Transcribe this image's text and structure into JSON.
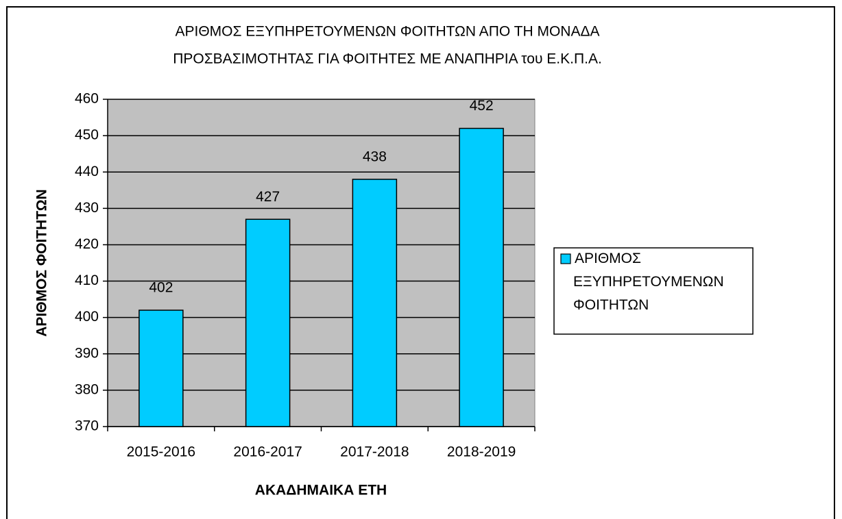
{
  "chart_data": {
    "type": "bar",
    "title": [
      "ΑΡΙΘΜΟΣ ΕΞΥΠΗΡΕΤΟΥΜΕΝΩΝ ΦΟΙΤΗΤΩΝ ΑΠΟ ΤΗ ΜΟΝΑΔΑ",
      "ΠΡΟΣΒΑΣΙΜΟΤΗΤΑΣ ΓΙΑ ΦΟΙΤΗΤΕΣ ΜΕ ΑΝΑΠΗΡΙΑ του Ε.Κ.Π.Α."
    ],
    "x_label": "ΑΚΑΔΗΜΑΙΚΑ ΕΤΗ",
    "y_label": "ΑΡΙΘΜΟΣ ΦΟΙΤΗΤΩΝ",
    "categories": [
      "2015-2016",
      "2016-2017",
      "2017-2018",
      "2018-2019"
    ],
    "series": [
      {
        "name": "ΑΡΙΘΜΟΣ ΕΞΥΠΗΡΕΤΟΥΜΕΝΩΝ ΦΟΙΤΗΤΩΝ",
        "color": "#00ccff",
        "values": [
          402,
          427,
          438,
          452
        ]
      }
    ],
    "ylim": [
      370,
      460
    ],
    "yticks": [
      370,
      380,
      390,
      400,
      410,
      420,
      430,
      440,
      450,
      460
    ],
    "grid": true,
    "legend": "right",
    "plot_background": "#c0c0c0"
  }
}
